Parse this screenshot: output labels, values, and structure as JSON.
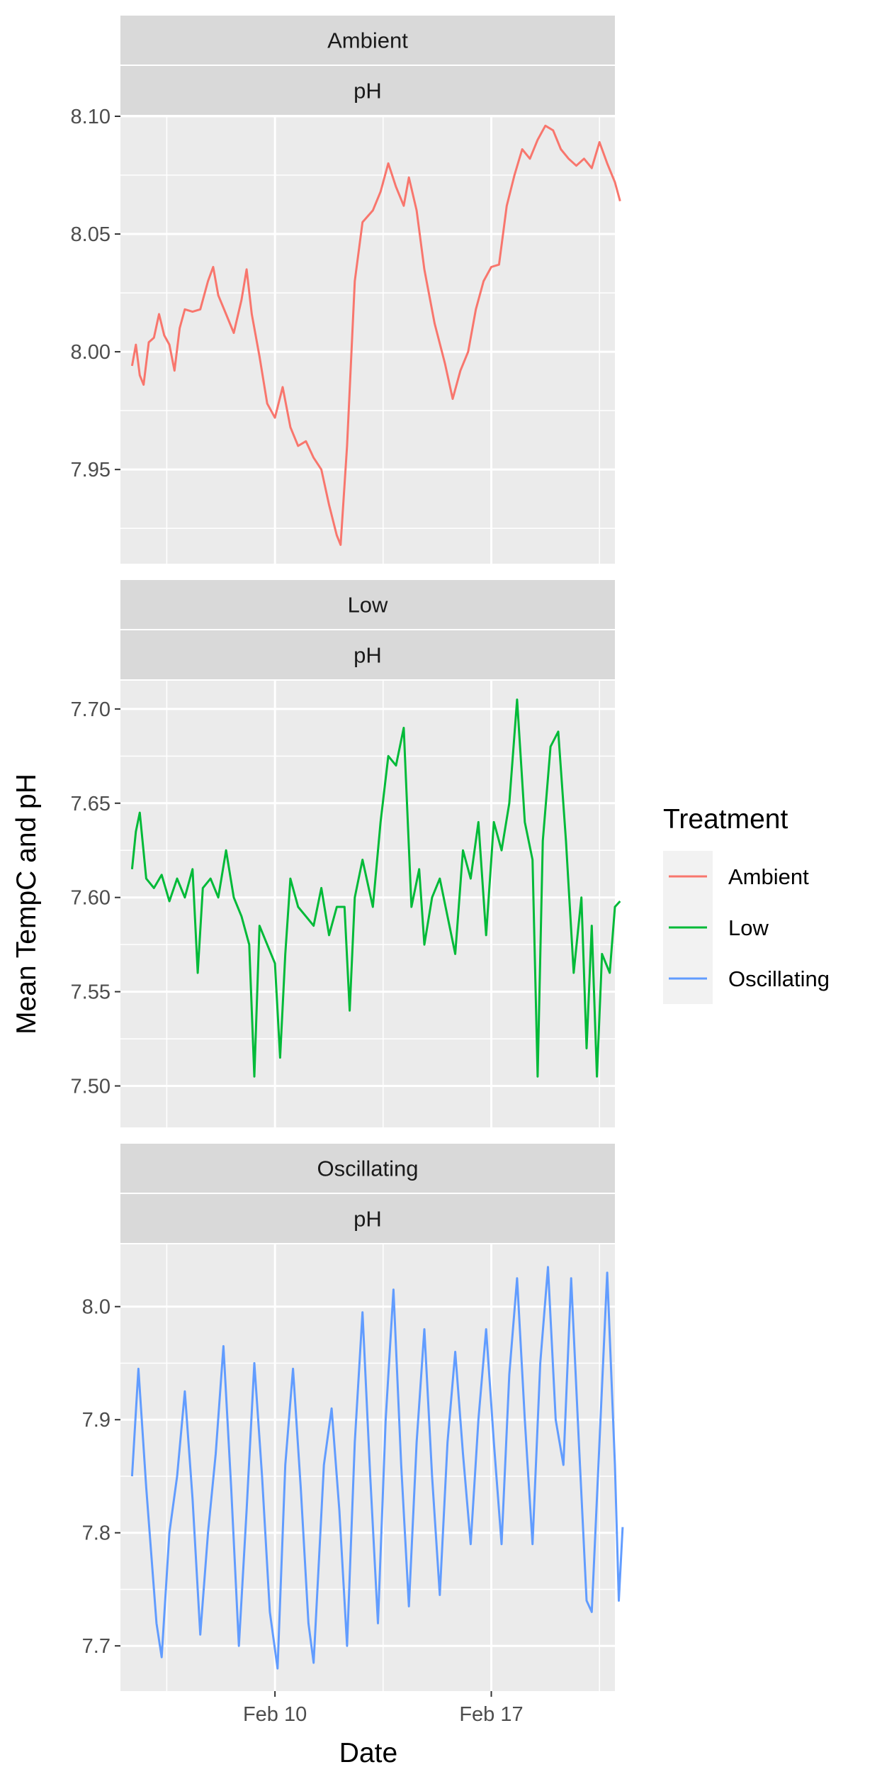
{
  "chart_data": {
    "type": "line",
    "facet_layout": "vertical",
    "xlabel": "Date",
    "ylabel": "Mean TempC and pH",
    "x_range": [
      "2020-02-05",
      "2020-02-21"
    ],
    "x_ticks": [
      {
        "date": "2020-02-10",
        "label": "Feb 10"
      },
      {
        "date": "2020-02-17",
        "label": "Feb 17"
      }
    ],
    "x_minor_ticks": [
      "2020-02-06T12:00",
      "2020-02-13T12:00",
      "2020-02-20T12:00"
    ],
    "grid": true,
    "legend": {
      "title": "Treatment",
      "position": "right",
      "entries": [
        {
          "label": "Ambient",
          "color": "#F8766D"
        },
        {
          "label": "Low",
          "color": "#00BA38"
        },
        {
          "label": "Oscillating",
          "color": "#619CFF"
        }
      ]
    },
    "panels": [
      {
        "strip": [
          "Ambient",
          "pH"
        ],
        "color": "#F8766D",
        "ylim": [
          7.91,
          8.1
        ],
        "yticks": [
          7.95,
          8.0,
          8.05,
          8.1
        ],
        "tick_labels": [
          "7.95",
          "8.00",
          "8.05",
          "8.10"
        ],
        "minor_yticks": [
          7.925,
          7.975,
          8.025,
          8.075
        ],
        "points": [
          [
            "2020-02-05T09:00",
            7.994
          ],
          [
            "2020-02-05T12:00",
            8.003
          ],
          [
            "2020-02-05T15:00",
            7.99
          ],
          [
            "2020-02-05T18:00",
            7.986
          ],
          [
            "2020-02-05T22:00",
            8.004
          ],
          [
            "2020-02-06T02:00",
            8.006
          ],
          [
            "2020-02-06T06:00",
            8.016
          ],
          [
            "2020-02-06T10:00",
            8.007
          ],
          [
            "2020-02-06T14:00",
            8.003
          ],
          [
            "2020-02-06T18:00",
            7.992
          ],
          [
            "2020-02-06T22:00",
            8.01
          ],
          [
            "2020-02-07T02:00",
            8.018
          ],
          [
            "2020-02-07T08:00",
            8.017
          ],
          [
            "2020-02-07T14:00",
            8.018
          ],
          [
            "2020-02-07T20:00",
            8.03
          ],
          [
            "2020-02-08T00:00",
            8.036
          ],
          [
            "2020-02-08T04:00",
            8.024
          ],
          [
            "2020-02-08T10:00",
            8.016
          ],
          [
            "2020-02-08T16:00",
            8.008
          ],
          [
            "2020-02-08T22:00",
            8.022
          ],
          [
            "2020-02-09T02:00",
            8.035
          ],
          [
            "2020-02-09T06:00",
            8.016
          ],
          [
            "2020-02-09T12:00",
            7.998
          ],
          [
            "2020-02-09T18:00",
            7.978
          ],
          [
            "2020-02-10T00:00",
            7.972
          ],
          [
            "2020-02-10T06:00",
            7.985
          ],
          [
            "2020-02-10T12:00",
            7.968
          ],
          [
            "2020-02-10T18:00",
            7.96
          ],
          [
            "2020-02-11T00:00",
            7.962
          ],
          [
            "2020-02-11T06:00",
            7.955
          ],
          [
            "2020-02-11T12:00",
            7.95
          ],
          [
            "2020-02-11T18:00",
            7.935
          ],
          [
            "2020-02-12T00:00",
            7.922
          ],
          [
            "2020-02-12T03:00",
            7.918
          ],
          [
            "2020-02-12T08:00",
            7.96
          ],
          [
            "2020-02-12T14:00",
            8.03
          ],
          [
            "2020-02-12T20:00",
            8.055
          ],
          [
            "2020-02-13T04:00",
            8.06
          ],
          [
            "2020-02-13T10:00",
            8.068
          ],
          [
            "2020-02-13T16:00",
            8.08
          ],
          [
            "2020-02-13T22:00",
            8.07
          ],
          [
            "2020-02-14T04:00",
            8.062
          ],
          [
            "2020-02-14T08:00",
            8.074
          ],
          [
            "2020-02-14T14:00",
            8.06
          ],
          [
            "2020-02-14T20:00",
            8.035
          ],
          [
            "2020-02-15T04:00",
            8.012
          ],
          [
            "2020-02-15T12:00",
            7.995
          ],
          [
            "2020-02-15T18:00",
            7.98
          ],
          [
            "2020-02-16T00:00",
            7.992
          ],
          [
            "2020-02-16T06:00",
            8.0
          ],
          [
            "2020-02-16T12:00",
            8.018
          ],
          [
            "2020-02-16T18:00",
            8.03
          ],
          [
            "2020-02-17T00:00",
            8.036
          ],
          [
            "2020-02-17T06:00",
            8.037
          ],
          [
            "2020-02-17T12:00",
            8.062
          ],
          [
            "2020-02-17T18:00",
            8.075
          ],
          [
            "2020-02-18T00:00",
            8.086
          ],
          [
            "2020-02-18T06:00",
            8.082
          ],
          [
            "2020-02-18T12:00",
            8.09
          ],
          [
            "2020-02-18T18:00",
            8.096
          ],
          [
            "2020-02-19T00:00",
            8.094
          ],
          [
            "2020-02-19T06:00",
            8.086
          ],
          [
            "2020-02-19T12:00",
            8.082
          ],
          [
            "2020-02-19T18:00",
            8.079
          ],
          [
            "2020-02-20T00:00",
            8.082
          ],
          [
            "2020-02-20T06:00",
            8.078
          ],
          [
            "2020-02-20T12:00",
            8.089
          ],
          [
            "2020-02-20T18:00",
            8.08
          ],
          [
            "2020-02-21T00:00",
            8.072
          ],
          [
            "2020-02-21T04:00",
            8.064
          ]
        ]
      },
      {
        "strip": [
          "Low",
          "pH"
        ],
        "color": "#00BA38",
        "ylim": [
          7.478,
          7.715
        ],
        "yticks": [
          7.5,
          7.55,
          7.6,
          7.65,
          7.7
        ],
        "tick_labels": [
          "7.50",
          "7.55",
          "7.60",
          "7.65",
          "7.70"
        ],
        "minor_yticks": [
          7.525,
          7.575,
          7.625,
          7.675
        ],
        "points": [
          [
            "2020-02-05T09:00",
            7.615
          ],
          [
            "2020-02-05T12:00",
            7.635
          ],
          [
            "2020-02-05T15:00",
            7.645
          ],
          [
            "2020-02-05T20:00",
            7.61
          ],
          [
            "2020-02-06T02:00",
            7.605
          ],
          [
            "2020-02-06T08:00",
            7.612
          ],
          [
            "2020-02-06T14:00",
            7.598
          ],
          [
            "2020-02-06T20:00",
            7.61
          ],
          [
            "2020-02-07T02:00",
            7.6
          ],
          [
            "2020-02-07T08:00",
            7.615
          ],
          [
            "2020-02-07T12:00",
            7.56
          ],
          [
            "2020-02-07T16:00",
            7.605
          ],
          [
            "2020-02-07T22:00",
            7.61
          ],
          [
            "2020-02-08T04:00",
            7.6
          ],
          [
            "2020-02-08T10:00",
            7.625
          ],
          [
            "2020-02-08T16:00",
            7.6
          ],
          [
            "2020-02-08T22:00",
            7.59
          ],
          [
            "2020-02-09T04:00",
            7.575
          ],
          [
            "2020-02-09T08:00",
            7.505
          ],
          [
            "2020-02-09T12:00",
            7.585
          ],
          [
            "2020-02-09T18:00",
            7.575
          ],
          [
            "2020-02-10T00:00",
            7.565
          ],
          [
            "2020-02-10T04:00",
            7.515
          ],
          [
            "2020-02-10T08:00",
            7.57
          ],
          [
            "2020-02-10T12:00",
            7.61
          ],
          [
            "2020-02-10T18:00",
            7.595
          ],
          [
            "2020-02-11T00:00",
            7.59
          ],
          [
            "2020-02-11T06:00",
            7.585
          ],
          [
            "2020-02-11T12:00",
            7.605
          ],
          [
            "2020-02-11T18:00",
            7.58
          ],
          [
            "2020-02-12T00:00",
            7.595
          ],
          [
            "2020-02-12T06:00",
            7.595
          ],
          [
            "2020-02-12T10:00",
            7.54
          ],
          [
            "2020-02-12T14:00",
            7.6
          ],
          [
            "2020-02-12T20:00",
            7.62
          ],
          [
            "2020-02-13T04:00",
            7.595
          ],
          [
            "2020-02-13T10:00",
            7.64
          ],
          [
            "2020-02-13T16:00",
            7.675
          ],
          [
            "2020-02-13T22:00",
            7.67
          ],
          [
            "2020-02-14T04:00",
            7.69
          ],
          [
            "2020-02-14T10:00",
            7.595
          ],
          [
            "2020-02-14T16:00",
            7.615
          ],
          [
            "2020-02-14T20:00",
            7.575
          ],
          [
            "2020-02-15T02:00",
            7.6
          ],
          [
            "2020-02-15T08:00",
            7.61
          ],
          [
            "2020-02-15T14:00",
            7.59
          ],
          [
            "2020-02-15T20:00",
            7.57
          ],
          [
            "2020-02-16T02:00",
            7.625
          ],
          [
            "2020-02-16T08:00",
            7.61
          ],
          [
            "2020-02-16T14:00",
            7.64
          ],
          [
            "2020-02-16T20:00",
            7.58
          ],
          [
            "2020-02-17T02:00",
            7.64
          ],
          [
            "2020-02-17T08:00",
            7.625
          ],
          [
            "2020-02-17T14:00",
            7.65
          ],
          [
            "2020-02-17T20:00",
            7.705
          ],
          [
            "2020-02-18T02:00",
            7.64
          ],
          [
            "2020-02-18T08:00",
            7.62
          ],
          [
            "2020-02-18T12:00",
            7.505
          ],
          [
            "2020-02-18T16:00",
            7.63
          ],
          [
            "2020-02-18T22:00",
            7.68
          ],
          [
            "2020-02-19T04:00",
            7.688
          ],
          [
            "2020-02-19T10:00",
            7.63
          ],
          [
            "2020-02-19T16:00",
            7.56
          ],
          [
            "2020-02-19T22:00",
            7.6
          ],
          [
            "2020-02-20T02:00",
            7.52
          ],
          [
            "2020-02-20T06:00",
            7.585
          ],
          [
            "2020-02-20T10:00",
            7.505
          ],
          [
            "2020-02-20T14:00",
            7.57
          ],
          [
            "2020-02-20T20:00",
            7.56
          ],
          [
            "2020-02-21T00:00",
            7.595
          ],
          [
            "2020-02-21T04:00",
            7.598
          ]
        ]
      },
      {
        "strip": [
          "Oscillating",
          "pH"
        ],
        "color": "#619CFF",
        "ylim": [
          7.66,
          8.055
        ],
        "yticks": [
          7.7,
          7.8,
          7.9,
          8.0
        ],
        "tick_labels": [
          "7.7",
          "7.8",
          "7.9",
          "8.0"
        ],
        "minor_yticks": [
          7.75,
          7.85,
          7.95
        ],
        "points": [
          [
            "2020-02-05T09:00",
            7.85
          ],
          [
            "2020-02-05T14:00",
            7.945
          ],
          [
            "2020-02-05T20:00",
            7.84
          ],
          [
            "2020-02-06T04:00",
            7.72
          ],
          [
            "2020-02-06T08:00",
            7.69
          ],
          [
            "2020-02-06T14:00",
            7.8
          ],
          [
            "2020-02-06T20:00",
            7.85
          ],
          [
            "2020-02-07T02:00",
            7.925
          ],
          [
            "2020-02-07T08:00",
            7.83
          ],
          [
            "2020-02-07T14:00",
            7.71
          ],
          [
            "2020-02-07T20:00",
            7.8
          ],
          [
            "2020-02-08T02:00",
            7.87
          ],
          [
            "2020-02-08T08:00",
            7.965
          ],
          [
            "2020-02-08T14:00",
            7.84
          ],
          [
            "2020-02-08T20:00",
            7.7
          ],
          [
            "2020-02-09T02:00",
            7.82
          ],
          [
            "2020-02-09T08:00",
            7.95
          ],
          [
            "2020-02-09T14:00",
            7.85
          ],
          [
            "2020-02-09T20:00",
            7.73
          ],
          [
            "2020-02-10T02:00",
            7.68
          ],
          [
            "2020-02-10T08:00",
            7.86
          ],
          [
            "2020-02-10T14:00",
            7.945
          ],
          [
            "2020-02-10T20:00",
            7.84
          ],
          [
            "2020-02-11T02:00",
            7.72
          ],
          [
            "2020-02-11T06:00",
            7.685
          ],
          [
            "2020-02-11T14:00",
            7.86
          ],
          [
            "2020-02-11T20:00",
            7.91
          ],
          [
            "2020-02-12T02:00",
            7.82
          ],
          [
            "2020-02-12T08:00",
            7.7
          ],
          [
            "2020-02-12T14:00",
            7.88
          ],
          [
            "2020-02-12T20:00",
            7.995
          ],
          [
            "2020-02-13T02:00",
            7.85
          ],
          [
            "2020-02-13T08:00",
            7.72
          ],
          [
            "2020-02-13T14:00",
            7.9
          ],
          [
            "2020-02-13T20:00",
            8.015
          ],
          [
            "2020-02-14T02:00",
            7.86
          ],
          [
            "2020-02-14T08:00",
            7.735
          ],
          [
            "2020-02-14T14:00",
            7.88
          ],
          [
            "2020-02-14T20:00",
            7.98
          ],
          [
            "2020-02-15T02:00",
            7.85
          ],
          [
            "2020-02-15T08:00",
            7.745
          ],
          [
            "2020-02-15T14:00",
            7.88
          ],
          [
            "2020-02-15T20:00",
            7.96
          ],
          [
            "2020-02-16T02:00",
            7.87
          ],
          [
            "2020-02-16T08:00",
            7.79
          ],
          [
            "2020-02-16T14:00",
            7.9
          ],
          [
            "2020-02-16T20:00",
            7.98
          ],
          [
            "2020-02-17T02:00",
            7.88
          ],
          [
            "2020-02-17T08:00",
            7.79
          ],
          [
            "2020-02-17T14:00",
            7.94
          ],
          [
            "2020-02-17T20:00",
            8.025
          ],
          [
            "2020-02-18T02:00",
            7.9
          ],
          [
            "2020-02-18T08:00",
            7.79
          ],
          [
            "2020-02-18T14:00",
            7.95
          ],
          [
            "2020-02-18T20:00",
            8.035
          ],
          [
            "2020-02-19T02:00",
            7.9
          ],
          [
            "2020-02-19T08:00",
            7.86
          ],
          [
            "2020-02-19T14:00",
            8.025
          ],
          [
            "2020-02-19T20:00",
            7.88
          ],
          [
            "2020-02-20T02:00",
            7.74
          ],
          [
            "2020-02-20T06:00",
            7.73
          ],
          [
            "2020-02-20T12:00",
            7.88
          ],
          [
            "2020-02-20T18:00",
            8.03
          ],
          [
            "2020-02-21T00:00",
            7.86
          ],
          [
            "2020-02-21T03:00",
            7.74
          ],
          [
            "2020-02-21T06:00",
            7.805
          ]
        ]
      }
    ]
  }
}
